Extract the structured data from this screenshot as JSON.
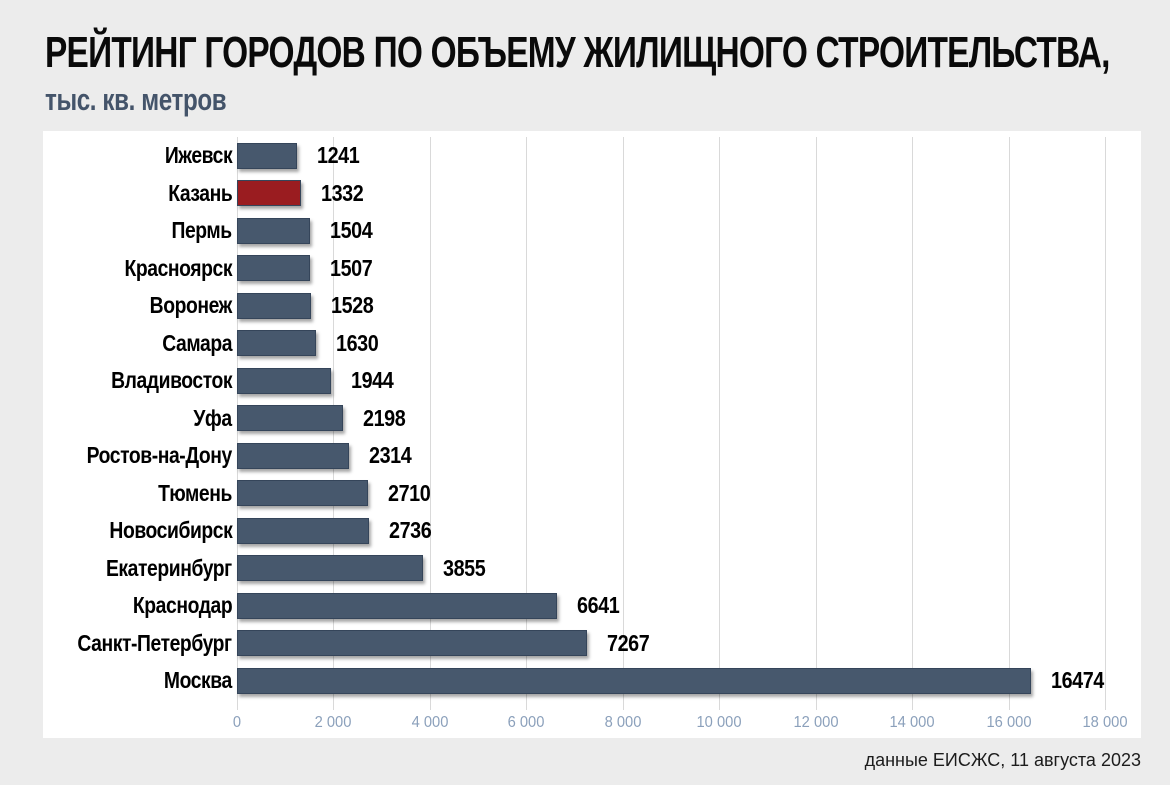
{
  "title": "РЕЙТИНГ ГОРОДОВ ПО ОБЪЕМУ ЖИЛИЩНОГО СТРОИТЕЛЬСТВА,",
  "subtitle": "тыс. кв. метров",
  "footer": "данные ЕИСЖС, 11 августа 2023",
  "colors": {
    "background": "#ececec",
    "panel": "#ffffff",
    "bar": "#47586d",
    "bar_border": "#35455a",
    "highlight_bar": "#9a1c20",
    "grid": "#d9d9d9",
    "tick_label": "#8ba0bb",
    "subtitle_color": "#44546a",
    "label_color": "#000000"
  },
  "chart_data": {
    "type": "bar",
    "orientation": "horizontal",
    "title": "РЕЙТИНГ ГОРОДОВ ПО ОБЪЕМУ ЖИЛИЩНОГО СТРОИТЕЛЬСТВА, тыс. кв. метров",
    "categories": [
      "Ижевск",
      "Казань",
      "Пермь",
      "Красноярск",
      "Воронеж",
      "Самара",
      "Владивосток",
      "Уфа",
      "Ростов-на-Дону",
      "Тюмень",
      "Новосибирск",
      "Екатеринбург",
      "Краснодар",
      "Санкт-Петербург",
      "Москва"
    ],
    "values": [
      1241,
      1332,
      1504,
      1507,
      1528,
      1630,
      1944,
      2198,
      2314,
      2710,
      2736,
      3855,
      6641,
      7267,
      16474
    ],
    "highlight_index": 1,
    "highlighted_category": "Казань",
    "xlim": [
      0,
      18000
    ],
    "x_ticks": [
      0,
      2000,
      4000,
      6000,
      8000,
      10000,
      12000,
      14000,
      16000,
      18000
    ],
    "x_tick_labels": [
      "0",
      "2 000",
      "4 000",
      "6 000",
      "8 000",
      "10 000",
      "12 000",
      "14 000",
      "16 000",
      "18 000"
    ],
    "grid": true,
    "legend": false,
    "value_labels": true,
    "source": "данные ЕИСЖС, 11 августа 2023"
  }
}
